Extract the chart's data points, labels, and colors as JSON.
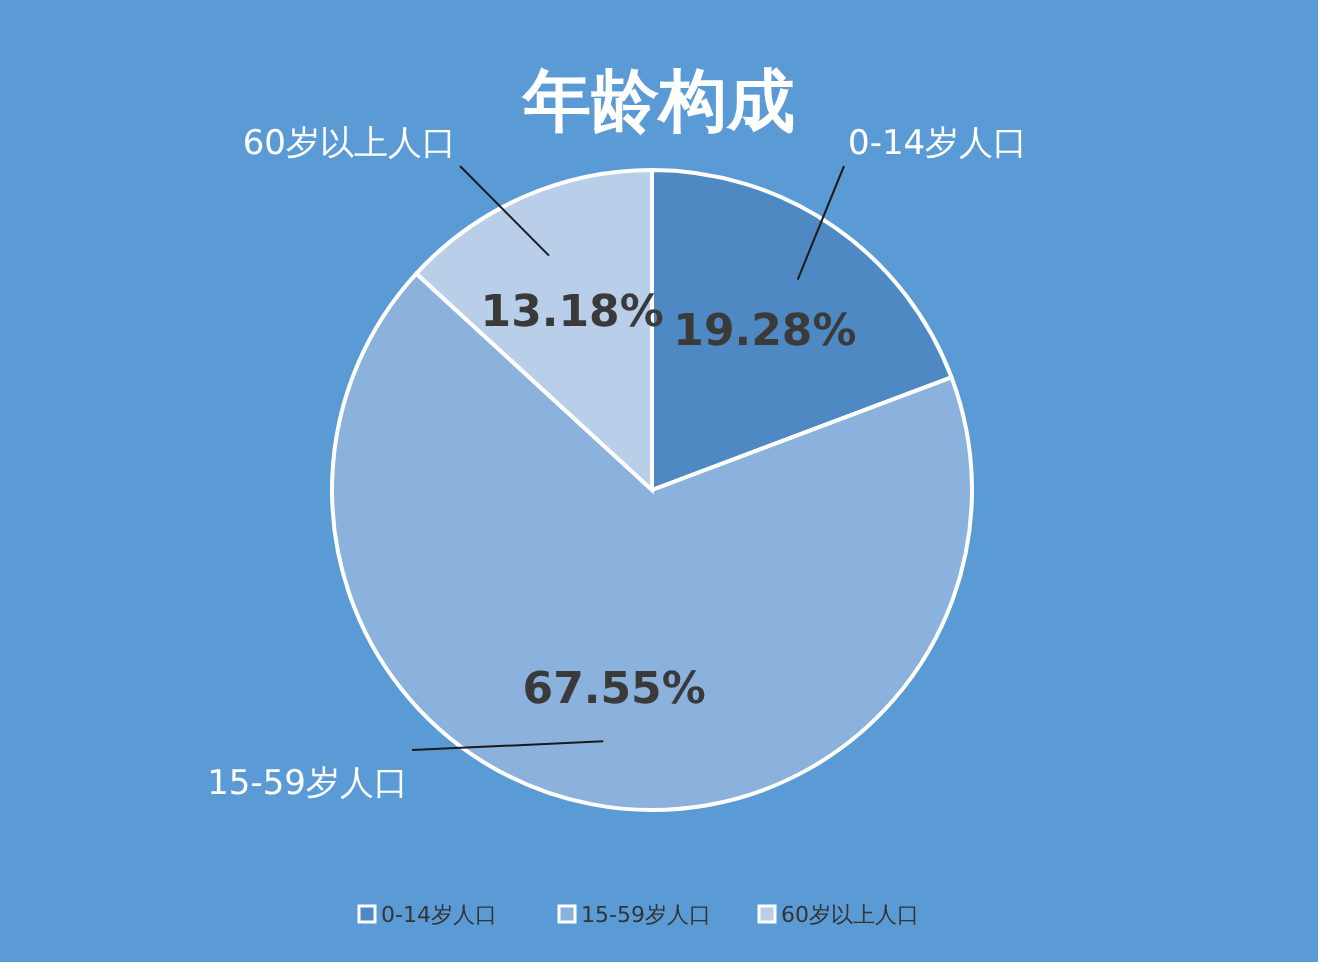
{
  "chart_data": {
    "type": "pie",
    "title": "年龄构成",
    "categories": [
      "0-14岁人口",
      "15-59岁人口",
      "60岁以上人口"
    ],
    "values": [
      19.28,
      67.55,
      13.18
    ],
    "value_labels": [
      "19.28%",
      "67.55%",
      "13.18%"
    ],
    "colors": [
      "#4f89c4",
      "#8bb2dc",
      "#b9cfe9"
    ],
    "legend": "bottom"
  }
}
